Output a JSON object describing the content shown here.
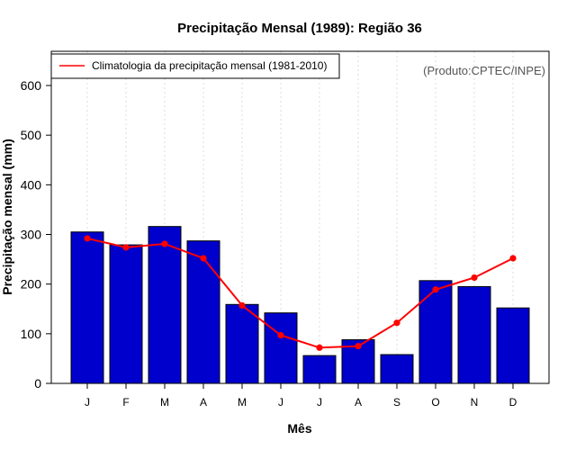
{
  "chart_data": {
    "type": "bar",
    "title": "Precipitação Mensal (1989): Região 36",
    "xlabel": "Mês",
    "ylabel": "Precipitação mensal (mm)",
    "ylim": [
      0,
      650
    ],
    "yticks": [
      0,
      100,
      200,
      300,
      400,
      500,
      600
    ],
    "categories": [
      "J",
      "F",
      "M",
      "A",
      "M",
      "J",
      "J",
      "A",
      "S",
      "O",
      "N",
      "D"
    ],
    "series": [
      {
        "name": "Precipitação mensal (1989)",
        "type": "bar",
        "values": [
          305,
          279,
          316,
          287,
          159,
          142,
          56,
          88,
          58,
          207,
          195,
          152
        ]
      },
      {
        "name": "Climatologia da precipitação mensal (1981-2010)",
        "type": "line",
        "values": [
          292,
          274,
          281,
          252,
          157,
          97,
          72,
          75,
          122,
          189,
          213,
          252
        ]
      }
    ],
    "legend": {
      "label": "Climatologia da precipitação mensal (1981-2010)",
      "position": "top-left"
    },
    "source_note": "(Produto:CPTEC/INPE)",
    "grid": "vertical-dotted"
  },
  "colors": {
    "bar_fill": "#0000cc",
    "bar_stroke": "#000000",
    "line": "#ff0000",
    "grid": "#dddddd"
  }
}
